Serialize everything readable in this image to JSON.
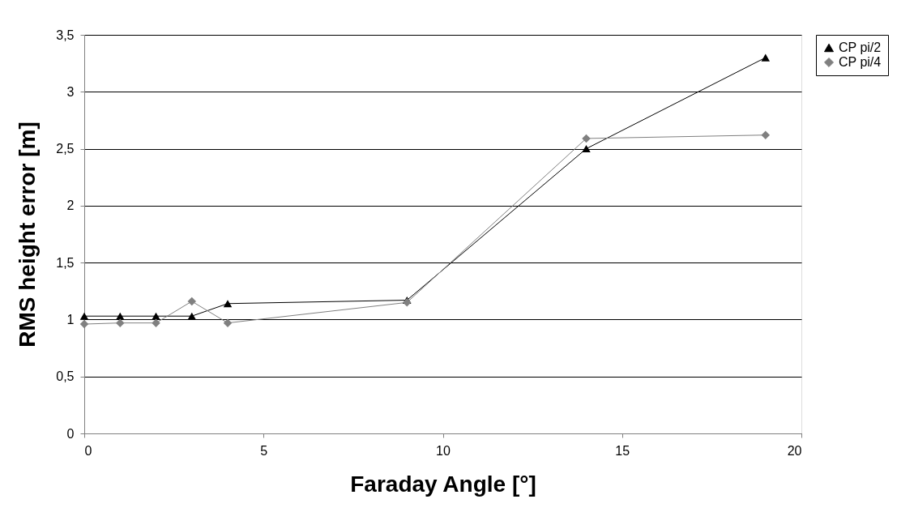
{
  "chart_data": {
    "type": "line",
    "xlabel": "Faraday Angle [°]",
    "ylabel": "RMS height error [m]",
    "x": [
      0,
      1,
      2,
      3,
      4,
      9,
      14,
      19
    ],
    "series": [
      {
        "name": "CP pi/2",
        "color": "#000000",
        "marker": "triangle",
        "values": [
          1.03,
          1.03,
          1.03,
          1.03,
          1.14,
          1.17,
          2.5,
          3.3
        ]
      },
      {
        "name": "CP pi/4",
        "color": "#808080",
        "marker": "diamond",
        "values": [
          0.96,
          0.97,
          0.97,
          1.16,
          0.97,
          1.15,
          2.59,
          2.62
        ]
      }
    ],
    "xlim": [
      0,
      20
    ],
    "xticks": [
      0,
      5,
      10,
      15,
      20
    ],
    "ylim": [
      0,
      3.5
    ],
    "yticks": [
      0,
      {
        "value": 0.5,
        "label": "0,5"
      },
      1,
      {
        "value": 1.5,
        "label": "1,5"
      },
      2,
      {
        "value": 2.5,
        "label": "2,5"
      },
      3,
      {
        "value": 3.5,
        "label": "3,5"
      }
    ],
    "grid": "y",
    "legend": "right",
    "line_style": "solid"
  }
}
